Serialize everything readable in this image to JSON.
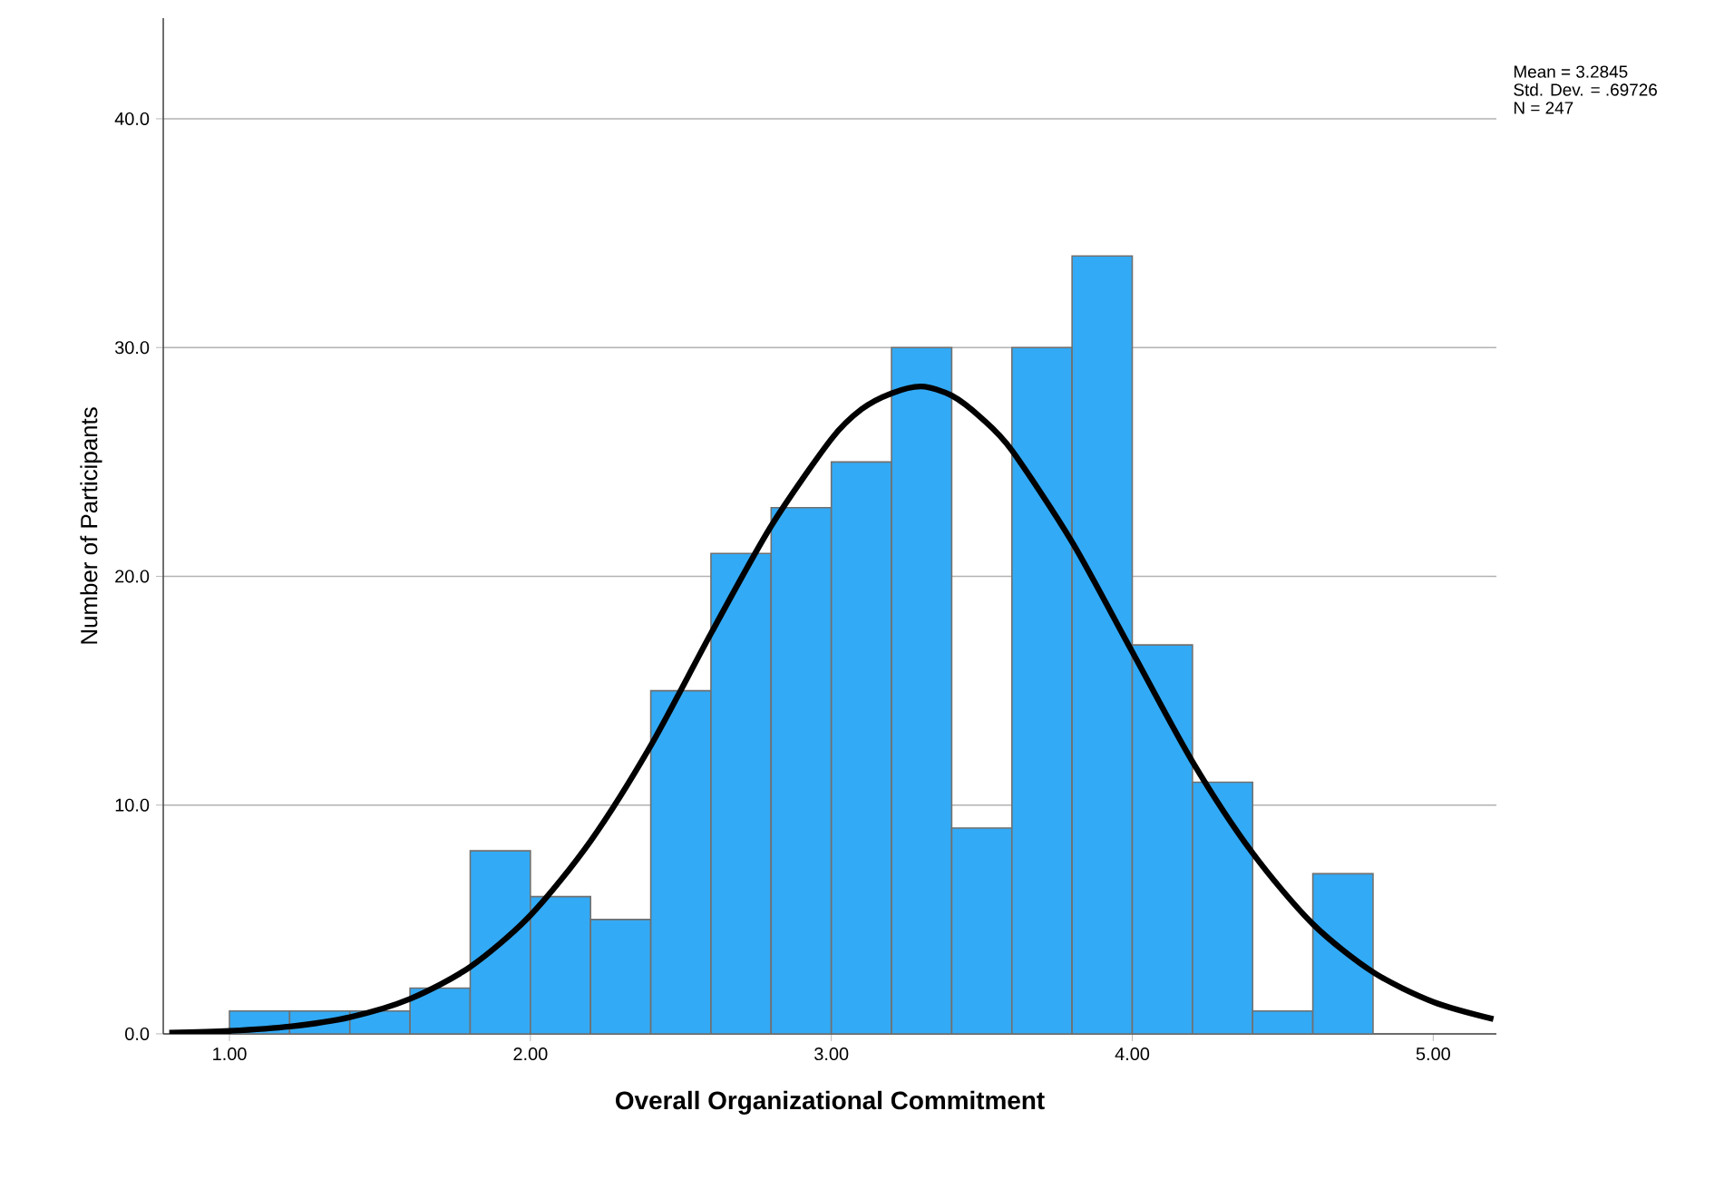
{
  "chart_data": {
    "type": "histogram",
    "xlabel": "Overall Organizational Commitment",
    "ylabel": "Number of Participants",
    "annotations": [
      "Mean = 3.2845",
      "Std. Dev. = .69726",
      "N = 247"
    ],
    "bins": [
      1.0,
      1.2,
      1.4,
      1.6,
      1.8,
      2.0,
      2.2,
      2.4,
      2.6,
      2.8,
      3.0,
      3.2,
      3.4,
      3.6,
      3.8,
      4.0,
      4.2,
      4.4,
      4.6,
      4.8
    ],
    "series": [
      {
        "color": "#33aaf5",
        "values": [
          1,
          1,
          1,
          2,
          8,
          6,
          5,
          15,
          21,
          23,
          25,
          30,
          9,
          30,
          34,
          17,
          11,
          1,
          7
        ]
      },
      {
        "type": "line",
        "color": "#000000",
        "x": [
          0.8,
          1.0,
          1.2,
          1.4,
          1.6,
          1.8,
          2.0,
          2.2,
          2.4,
          2.6,
          2.8,
          3.0,
          3.1,
          3.2,
          3.3,
          3.4,
          3.5,
          3.6,
          3.8,
          4.0,
          4.2,
          4.4,
          4.6,
          4.8,
          5.0,
          5.2
        ],
        "values": [
          0.05,
          0.13,
          0.32,
          0.73,
          1.53,
          2.93,
          5.18,
          8.43,
          12.6,
          17.5,
          22.2,
          26.0,
          27.3,
          28.0,
          28.3,
          27.9,
          26.9,
          25.5,
          21.5,
          16.7,
          11.9,
          7.9,
          4.8,
          2.7,
          1.4,
          0.65
        ]
      }
    ],
    "xlim": [
      0.78,
      5.21
    ],
    "ylim": [
      0,
      44.4
    ],
    "xticks": [
      {
        "value": 1,
        "label": "1.00"
      },
      {
        "value": 2,
        "label": "2.00"
      },
      {
        "value": 3,
        "label": "3.00"
      },
      {
        "value": 4,
        "label": "4.00"
      },
      {
        "value": 5,
        "label": "5.00"
      }
    ],
    "yticks": [
      {
        "value": 0,
        "label": "0.0"
      },
      {
        "value": 10,
        "label": "10.0"
      },
      {
        "value": 20,
        "label": "20.0"
      },
      {
        "value": 30,
        "label": "30.0"
      },
      {
        "value": 40,
        "label": "40.0"
      }
    ],
    "grid": "y"
  }
}
